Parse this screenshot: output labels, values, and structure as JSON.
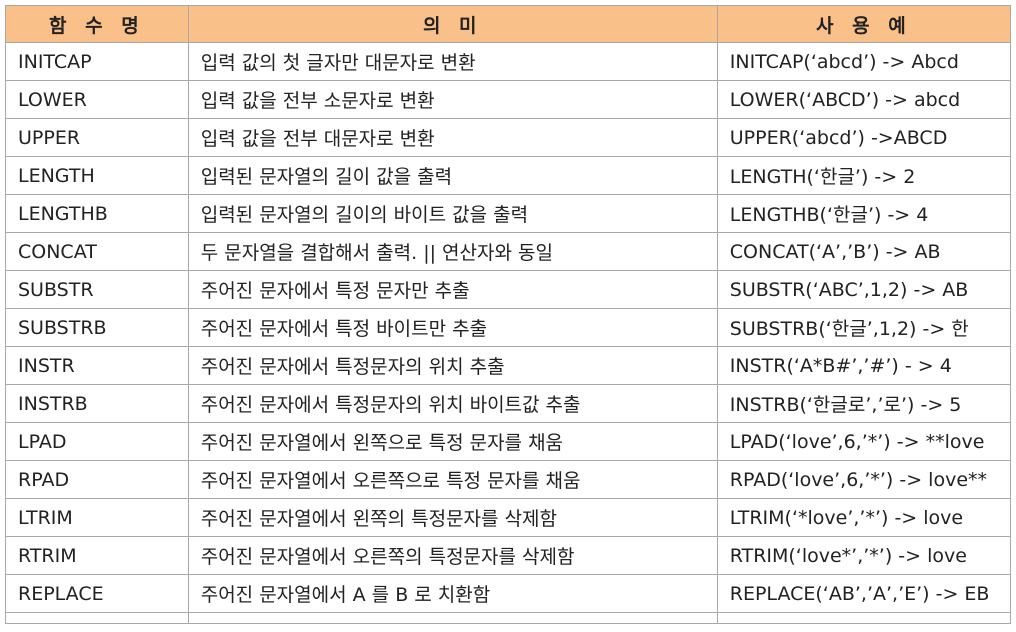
{
  "headers": [
    "함 수 명",
    "의   미",
    "사 용 예"
  ],
  "rows": [
    {
      "name": "INITCAP",
      "desc": "입력 값의 첫 글자만 대문자로 변환",
      "example": "INITCAP(‘abcd’) -> Abcd"
    },
    {
      "name": "LOWER",
      "desc": "입력 값을 전부 소문자로 변환",
      "example": "LOWER(‘ABCD’) -> abcd"
    },
    {
      "name": "UPPER",
      "desc": "입력 값을 전부 대문자로 변환",
      "example": "UPPER(‘abcd’) ->ABCD"
    },
    {
      "name": "LENGTH",
      "desc": "입력된 문자열의 길이 값을 출력",
      "example": "LENGTH(‘한글’) -> 2"
    },
    {
      "name": "LENGTHB",
      "desc": "입력된 문자열의 길이의 바이트 값을 출력",
      "example": "LENGTHB(‘한글’) -> 4"
    },
    {
      "name": "CONCAT",
      "desc": "두 문자열을 결합해서 출력. || 연산자와 동일",
      "example": "CONCAT(‘A’,’B’) -> AB"
    },
    {
      "name": "SUBSTR",
      "desc": "주어진 문자에서 특정 문자만 추출",
      "example": "SUBSTR(‘ABC’,1,2) -> AB"
    },
    {
      "name": "SUBSTRB",
      "desc": "주어진 문자에서 특정 바이트만 추출",
      "example": "SUBSTRB(‘한글’,1,2) -> 한"
    },
    {
      "name": "INSTR",
      "desc": "주어진 문자에서 특정문자의 위치 추출",
      "example": "INSTR(‘A*B#’,’#’) - > 4"
    },
    {
      "name": "INSTRB",
      "desc": "주어진 문자에서 특정문자의 위치 바이트값 추출",
      "example": "INSTRB(‘한글로’,’로’) -> 5"
    },
    {
      "name": "LPAD",
      "desc": "주어진 문자열에서 왼쪽으로 특정 문자를 채움",
      "example": "LPAD(‘love’,6,’*’) -> **love"
    },
    {
      "name": "RPAD",
      "desc": "주어진 문자열에서 오른쪽으로 특정 문자를 채움",
      "example": "RPAD(‘love’,6,’*’) -> love**"
    },
    {
      "name": "LTRIM",
      "desc": "주어진 문자열에서 왼쪽의 특정문자를 삭제함",
      "example": "LTRIM(‘*love’,’*’) -> love"
    },
    {
      "name": "RTRIM",
      "desc": "주어진 문자열에서 오른쪽의 특정문자를 삭제함",
      "example": "RTRIM(‘love*’,’*’) -> love"
    },
    {
      "name": "REPLACE",
      "desc": "주어진 문자열에서 A 를 B 로 치환함",
      "example": "REPLACE(‘AB’,’A’,’E’) -> EB"
    }
  ]
}
